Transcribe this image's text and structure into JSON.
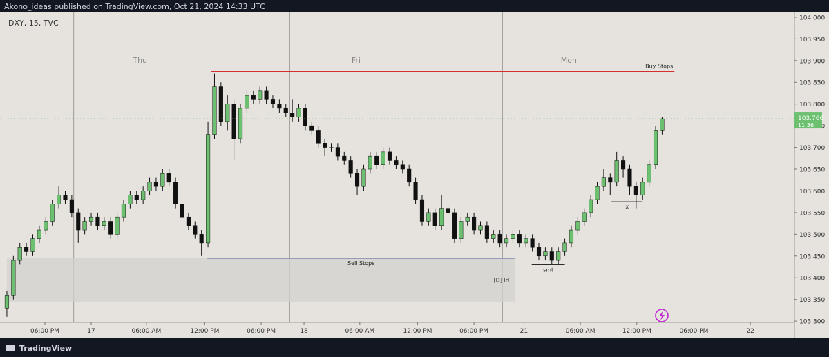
{
  "header": {
    "published": "Akono_ideas published on TradingView.com, Oct 21, 2024 14:33 UTC"
  },
  "footer": {
    "brand": "TradingView"
  },
  "chart_data": {
    "type": "candlestick",
    "symbol": "DXY, 15, TVC",
    "up_color": "#6cc070",
    "down_color": "#111111",
    "xlim": [
      -1.06,
      121.4
    ],
    "ylim": [
      103.297,
      104.011
    ],
    "yticks": [
      {
        "value": 103.3,
        "label": "103.300"
      },
      {
        "value": 103.35,
        "label": "103.350"
      },
      {
        "value": 103.4,
        "label": "103.400"
      },
      {
        "value": 103.45,
        "label": "103.450"
      },
      {
        "value": 103.5,
        "label": "103.500"
      },
      {
        "value": 103.55,
        "label": "103.550"
      },
      {
        "value": 103.6,
        "label": "103.600"
      },
      {
        "value": 103.65,
        "label": "103.650"
      },
      {
        "value": 103.7,
        "label": "103.700"
      },
      {
        "value": 103.75,
        "label": "103.750"
      },
      {
        "value": 103.8,
        "label": "103.800"
      },
      {
        "value": 103.85,
        "label": "103.850"
      },
      {
        "value": 103.9,
        "label": "103.900"
      },
      {
        "value": 103.95,
        "label": "103.950"
      },
      {
        "value": 104.0,
        "label": "104.000"
      }
    ],
    "xticks": [
      {
        "value": 5.86,
        "label": "06:00 PM"
      },
      {
        "value": 13.0,
        "label": "17"
      },
      {
        "value": 21.5,
        "label": "06:00 AM"
      },
      {
        "value": 30.5,
        "label": "12:00 PM"
      },
      {
        "value": 39.2,
        "label": "06:00 PM"
      },
      {
        "value": 45.8,
        "label": "18"
      },
      {
        "value": 54.4,
        "label": "06:00 AM"
      },
      {
        "value": 63.3,
        "label": "12:00 PM"
      },
      {
        "value": 72.0,
        "label": "06:00 PM"
      },
      {
        "value": 79.7,
        "label": "21"
      },
      {
        "value": 88.4,
        "label": "06:00 AM"
      },
      {
        "value": 97.1,
        "label": "12:00 PM"
      },
      {
        "value": 105.9,
        "label": "06:00 PM"
      },
      {
        "value": 114.6,
        "label": "22"
      }
    ],
    "sessions": [
      {
        "label": "Thu",
        "start": 10.3
      },
      {
        "label": "Fri",
        "start": 43.6
      },
      {
        "label": "Mon",
        "start": 76.4
      }
    ],
    "countdown": "11:36",
    "ohlc": [
      [
        103.33,
        103.37,
        103.31,
        103.36
      ],
      [
        103.36,
        103.45,
        103.35,
        103.44
      ],
      [
        103.44,
        103.48,
        103.43,
        103.47
      ],
      [
        103.47,
        103.48,
        103.45,
        103.46
      ],
      [
        103.46,
        103.5,
        103.45,
        103.49
      ],
      [
        103.49,
        103.52,
        103.48,
        103.51
      ],
      [
        103.51,
        103.54,
        103.5,
        103.53
      ],
      [
        103.53,
        103.58,
        103.52,
        103.57
      ],
      [
        103.57,
        103.61,
        103.56,
        103.59
      ],
      [
        103.59,
        103.6,
        103.57,
        103.58
      ],
      [
        103.58,
        103.59,
        103.54,
        103.55
      ],
      [
        103.55,
        103.56,
        103.48,
        103.51
      ],
      [
        103.51,
        103.54,
        103.5,
        103.53
      ],
      [
        103.53,
        103.55,
        103.52,
        103.54
      ],
      [
        103.54,
        103.55,
        103.51,
        103.52
      ],
      [
        103.52,
        103.54,
        103.51,
        103.53
      ],
      [
        103.53,
        103.54,
        103.49,
        103.5
      ],
      [
        103.5,
        103.55,
        103.49,
        103.54
      ],
      [
        103.54,
        103.58,
        103.53,
        103.57
      ],
      [
        103.57,
        103.6,
        103.56,
        103.59
      ],
      [
        103.59,
        103.6,
        103.57,
        103.58
      ],
      [
        103.58,
        103.61,
        103.57,
        103.6
      ],
      [
        103.6,
        103.63,
        103.59,
        103.62
      ],
      [
        103.62,
        103.63,
        103.6,
        103.61
      ],
      [
        103.61,
        103.65,
        103.6,
        103.64
      ],
      [
        103.64,
        103.65,
        103.61,
        103.62
      ],
      [
        103.62,
        103.63,
        103.56,
        103.57
      ],
      [
        103.57,
        103.58,
        103.53,
        103.54
      ],
      [
        103.54,
        103.55,
        103.51,
        103.52
      ],
      [
        103.52,
        103.53,
        103.49,
        103.5
      ],
      [
        103.5,
        103.51,
        103.45,
        103.48
      ],
      [
        103.48,
        103.76,
        103.47,
        103.73
      ],
      [
        103.73,
        103.87,
        103.72,
        103.84
      ],
      [
        103.84,
        103.85,
        103.75,
        103.76
      ],
      [
        103.76,
        103.82,
        103.74,
        103.8
      ],
      [
        103.8,
        103.81,
        103.67,
        103.72
      ],
      [
        103.72,
        103.8,
        103.71,
        103.79
      ],
      [
        103.79,
        103.83,
        103.78,
        103.82
      ],
      [
        103.82,
        103.83,
        103.8,
        103.81
      ],
      [
        103.81,
        103.84,
        103.8,
        103.83
      ],
      [
        103.83,
        103.84,
        103.8,
        103.81
      ],
      [
        103.81,
        103.82,
        103.79,
        103.8
      ],
      [
        103.8,
        103.81,
        103.78,
        103.79
      ],
      [
        103.79,
        103.8,
        103.77,
        103.78
      ],
      [
        103.78,
        103.81,
        103.76,
        103.77
      ],
      [
        103.77,
        103.8,
        103.76,
        103.79
      ],
      [
        103.79,
        103.8,
        103.74,
        103.75
      ],
      [
        103.75,
        103.76,
        103.73,
        103.74
      ],
      [
        103.74,
        103.75,
        103.7,
        103.71
      ],
      [
        103.71,
        103.72,
        103.68,
        103.7
      ],
      [
        103.7,
        103.71,
        103.69,
        103.7
      ],
      [
        103.7,
        103.71,
        103.67,
        103.68
      ],
      [
        103.68,
        103.69,
        103.66,
        103.67
      ],
      [
        103.67,
        103.68,
        103.63,
        103.64
      ],
      [
        103.64,
        103.65,
        103.59,
        103.61
      ],
      [
        103.61,
        103.66,
        103.6,
        103.65
      ],
      [
        103.65,
        103.69,
        103.64,
        103.68
      ],
      [
        103.68,
        103.69,
        103.65,
        103.66
      ],
      [
        103.66,
        103.7,
        103.65,
        103.69
      ],
      [
        103.69,
        103.7,
        103.66,
        103.67
      ],
      [
        103.67,
        103.68,
        103.65,
        103.66
      ],
      [
        103.66,
        103.67,
        103.64,
        103.65
      ],
      [
        103.65,
        103.66,
        103.61,
        103.62
      ],
      [
        103.62,
        103.63,
        103.57,
        103.58
      ],
      [
        103.58,
        103.59,
        103.52,
        103.53
      ],
      [
        103.53,
        103.56,
        103.52,
        103.55
      ],
      [
        103.55,
        103.56,
        103.51,
        103.52
      ],
      [
        103.52,
        103.59,
        103.51,
        103.56
      ],
      [
        103.56,
        103.57,
        103.54,
        103.55
      ],
      [
        103.55,
        103.56,
        103.48,
        103.49
      ],
      [
        103.49,
        103.54,
        103.48,
        103.53
      ],
      [
        103.53,
        103.55,
        103.52,
        103.54
      ],
      [
        103.54,
        103.55,
        103.5,
        103.51
      ],
      [
        103.51,
        103.53,
        103.5,
        103.52
      ],
      [
        103.52,
        103.53,
        103.48,
        103.49
      ],
      [
        103.49,
        103.51,
        103.48,
        103.5
      ],
      [
        103.5,
        103.51,
        103.47,
        103.48
      ],
      [
        103.48,
        103.5,
        103.47,
        103.49
      ],
      [
        103.49,
        103.51,
        103.48,
        103.5
      ],
      [
        103.5,
        103.51,
        103.47,
        103.48
      ],
      [
        103.48,
        103.5,
        103.47,
        103.49
      ],
      [
        103.49,
        103.5,
        103.46,
        103.47
      ],
      [
        103.47,
        103.48,
        103.44,
        103.45
      ],
      [
        103.45,
        103.47,
        103.44,
        103.46
      ],
      [
        103.46,
        103.47,
        103.43,
        103.44
      ],
      [
        103.44,
        103.47,
        103.43,
        103.46
      ],
      [
        103.46,
        103.49,
        103.45,
        103.48
      ],
      [
        103.48,
        103.52,
        103.47,
        103.51
      ],
      [
        103.51,
        103.54,
        103.5,
        103.53
      ],
      [
        103.53,
        103.56,
        103.52,
        103.55
      ],
      [
        103.55,
        103.59,
        103.54,
        103.58
      ],
      [
        103.58,
        103.62,
        103.57,
        103.61
      ],
      [
        103.61,
        103.65,
        103.6,
        103.63
      ],
      [
        103.63,
        103.64,
        103.59,
        103.62
      ],
      [
        103.62,
        103.69,
        103.61,
        103.67
      ],
      [
        103.67,
        103.68,
        103.63,
        103.65
      ],
      [
        103.65,
        103.66,
        103.59,
        103.61
      ],
      [
        103.61,
        103.62,
        103.56,
        103.59
      ],
      [
        103.59,
        103.63,
        103.58,
        103.62
      ],
      [
        103.62,
        103.67,
        103.61,
        103.66
      ],
      [
        103.66,
        103.75,
        103.65,
        103.74
      ],
      [
        103.74,
        103.77,
        103.73,
        103.766
      ]
    ],
    "zones": [
      {
        "label": "[D] lrl",
        "x": [
          0,
          78.3
        ],
        "y": [
          103.345,
          103.445
        ],
        "color": "#d3d1cf"
      }
    ],
    "levels": [
      {
        "label": "Buy Stops",
        "y": 103.875,
        "x": [
          31.5,
          102.9
        ],
        "color": "#d32f2f"
      },
      {
        "label": "Sell Stops",
        "y": 103.445,
        "x": [
          30.9,
          78.3
        ],
        "color": "#2a3d99"
      },
      {
        "label": "smt",
        "y": 103.43,
        "x": [
          80.9,
          86.0
        ],
        "color": "#111111"
      },
      {
        "label": "x",
        "y": 103.575,
        "x": [
          93.2,
          98.0
        ],
        "color": "#111111"
      }
    ]
  }
}
